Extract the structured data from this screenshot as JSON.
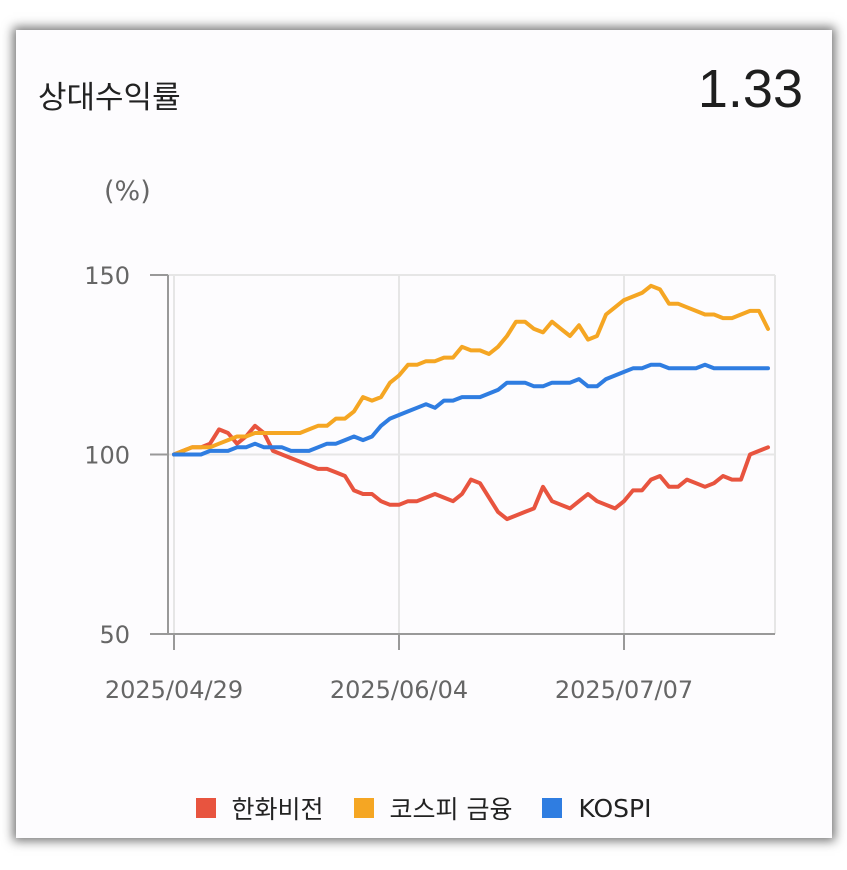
{
  "header": {
    "title": "상대수익률",
    "value": "1.33"
  },
  "colors": {
    "hanwha": "#e8543f",
    "kospi_finance": "#f5a623",
    "kospi": "#2f7de1"
  },
  "chart_data": {
    "type": "line",
    "ylabel": "(%)",
    "ylim": [
      50,
      150
    ],
    "yticks": [
      "150",
      "100",
      "50"
    ],
    "xticks": [
      {
        "label": "2025/04/29",
        "index": 0
      },
      {
        "label": "2025/06/04",
        "index": 25
      },
      {
        "label": "2025/07/07",
        "index": 50
      }
    ],
    "grid": true,
    "legend": "bottom",
    "series": [
      {
        "name": "한화비전",
        "color": "#e8543f",
        "values": [
          100,
          101,
          102,
          102,
          103,
          107,
          106,
          103,
          105,
          108,
          106,
          101,
          100,
          99,
          98,
          97,
          96,
          96,
          95,
          94,
          90,
          89,
          89,
          87,
          86,
          86,
          87,
          87,
          88,
          89,
          88,
          87,
          89,
          93,
          92,
          88,
          84,
          82,
          83,
          84,
          85,
          91,
          87,
          86,
          85,
          87,
          89,
          87,
          86,
          85,
          87,
          90,
          90,
          93,
          94,
          91,
          91,
          93,
          92,
          91,
          92,
          94,
          93,
          93,
          100,
          101,
          102
        ]
      },
      {
        "name": "코스피 금융",
        "color": "#f5a623",
        "values": [
          100,
          101,
          102,
          102,
          102,
          103,
          104,
          105,
          105,
          106,
          106,
          106,
          106,
          106,
          106,
          107,
          108,
          108,
          110,
          110,
          112,
          116,
          115,
          116,
          120,
          122,
          125,
          125,
          126,
          126,
          127,
          127,
          130,
          129,
          129,
          128,
          130,
          133,
          137,
          137,
          135,
          134,
          137,
          135,
          133,
          136,
          132,
          133,
          139,
          141,
          143,
          144,
          145,
          147,
          146,
          142,
          142,
          141,
          140,
          139,
          139,
          138,
          138,
          139,
          140,
          140,
          135
        ]
      },
      {
        "name": "KOSPI",
        "color": "#2f7de1",
        "values": [
          100,
          100,
          100,
          100,
          101,
          101,
          101,
          102,
          102,
          103,
          102,
          102,
          102,
          101,
          101,
          101,
          102,
          103,
          103,
          104,
          105,
          104,
          105,
          108,
          110,
          111,
          112,
          113,
          114,
          113,
          115,
          115,
          116,
          116,
          116,
          117,
          118,
          120,
          120,
          120,
          119,
          119,
          120,
          120,
          120,
          121,
          119,
          119,
          121,
          122,
          123,
          124,
          124,
          125,
          125,
          124,
          124,
          124,
          124,
          125,
          124,
          124,
          124,
          124,
          124,
          124,
          124
        ]
      }
    ]
  }
}
